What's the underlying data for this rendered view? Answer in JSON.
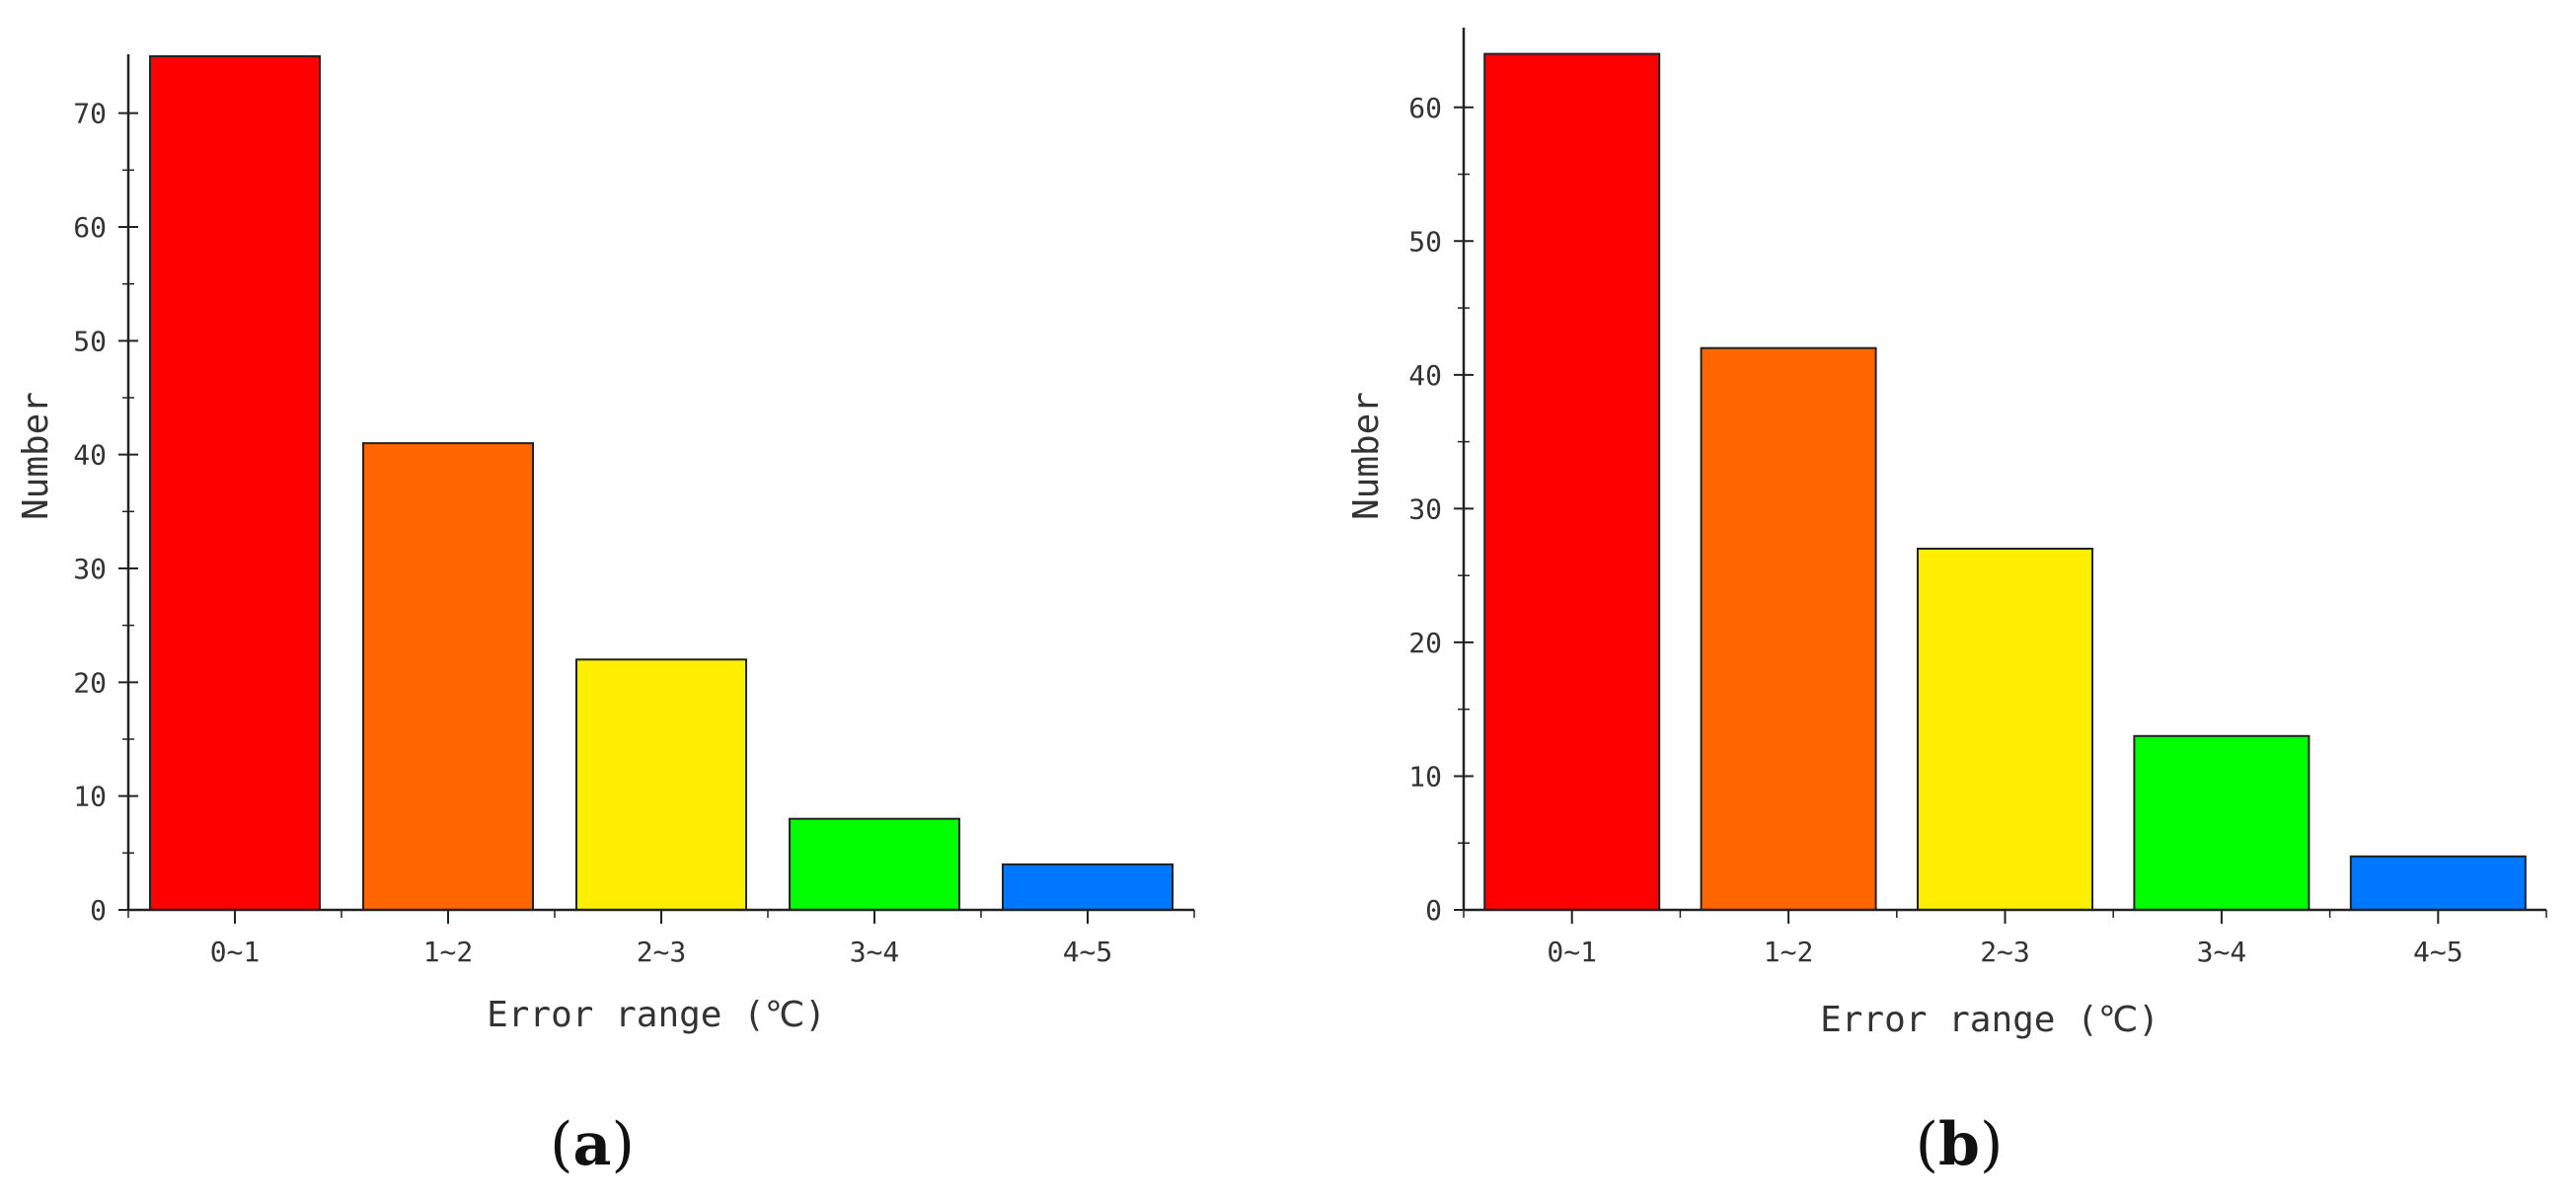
{
  "chart_data": [
    {
      "type": "bar",
      "panel_label": "a",
      "categories": [
        "0~1",
        "1~2",
        "2~3",
        "3~4",
        "4~5"
      ],
      "values": [
        75,
        41,
        22,
        8,
        4
      ],
      "colors": [
        "#ff0000",
        "#ff6600",
        "#ffee00",
        "#00ff00",
        "#0077ff"
      ],
      "xlabel": "Error range (℃)",
      "ylabel": "Number",
      "ylim": [
        0,
        75
      ],
      "yticks": [
        0,
        10,
        20,
        30,
        40,
        50,
        60,
        70
      ],
      "grid": false
    },
    {
      "type": "bar",
      "panel_label": "b",
      "categories": [
        "0~1",
        "1~2",
        "2~3",
        "3~4",
        "4~5"
      ],
      "values": [
        64,
        42,
        27,
        13,
        4
      ],
      "colors": [
        "#ff0000",
        "#ff6600",
        "#ffee00",
        "#00ff00",
        "#0077ff"
      ],
      "xlabel": "Error range (℃)",
      "ylabel": "Number",
      "ylim": [
        0,
        65
      ],
      "yticks": [
        0,
        10,
        20,
        30,
        40,
        50,
        60
      ],
      "grid": false
    }
  ]
}
